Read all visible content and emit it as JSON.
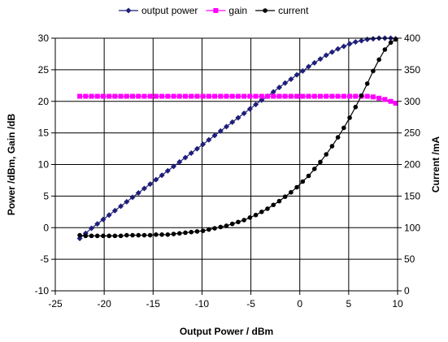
{
  "chart_data": {
    "type": "line",
    "title": "",
    "xlabel": "Output Power / dBm",
    "ylabel": "Power /dBm, Gain /dB",
    "y2label": "Current /mA",
    "xlim": [
      -25,
      10
    ],
    "ylim": [
      -10,
      30
    ],
    "y2lim": [
      0,
      400
    ],
    "xticks": [
      -25,
      -20,
      -15,
      -10,
      -5,
      0,
      5,
      10
    ],
    "yticks": [
      -10,
      -5,
      0,
      5,
      10,
      15,
      20,
      25,
      30
    ],
    "y2ticks": [
      0,
      50,
      100,
      150,
      200,
      250,
      300,
      350,
      400
    ],
    "grid": true,
    "legend_position": "top",
    "x": [
      -22.5,
      -21.9,
      -21.3,
      -20.7,
      -20.1,
      -19.5,
      -18.9,
      -18.3,
      -17.7,
      -17.1,
      -16.5,
      -15.9,
      -15.3,
      -14.7,
      -14.1,
      -13.5,
      -12.9,
      -12.3,
      -11.7,
      -11.1,
      -10.5,
      -9.9,
      -9.3,
      -8.7,
      -8.1,
      -7.5,
      -6.9,
      -6.3,
      -5.7,
      -5.1,
      -4.5,
      -3.9,
      -3.3,
      -2.7,
      -2.1,
      -1.5,
      -0.9,
      -0.3,
      0.3,
      0.9,
      1.5,
      2.1,
      2.7,
      3.3,
      3.9,
      4.5,
      5.1,
      5.7,
      6.3,
      6.9,
      7.5,
      8.1,
      8.7,
      9.3,
      9.8
    ],
    "series": [
      {
        "name": "output power",
        "axis": "left",
        "color": "#1f1f7a",
        "marker": "diamond",
        "values": [
          -1.7,
          -0.9,
          -0.1,
          0.6,
          1.3,
          2.0,
          2.7,
          3.4,
          4.1,
          4.8,
          5.5,
          6.2,
          6.9,
          7.6,
          8.3,
          9.0,
          9.7,
          10.4,
          11.1,
          11.8,
          12.5,
          13.2,
          13.9,
          14.6,
          15.3,
          16.0,
          16.7,
          17.4,
          18.1,
          18.8,
          19.5,
          20.2,
          20.8,
          21.5,
          22.2,
          22.9,
          23.5,
          24.2,
          24.8,
          25.5,
          26.1,
          26.7,
          27.3,
          27.8,
          28.3,
          28.7,
          29.1,
          29.4,
          29.6,
          29.8,
          29.9,
          30.0,
          30.0,
          30.0,
          29.9
        ]
      },
      {
        "name": "gain",
        "axis": "left",
        "color": "#ff00ff",
        "marker": "square",
        "values": [
          20.8,
          20.8,
          20.8,
          20.8,
          20.8,
          20.8,
          20.8,
          20.8,
          20.8,
          20.8,
          20.8,
          20.8,
          20.8,
          20.8,
          20.8,
          20.8,
          20.8,
          20.8,
          20.8,
          20.8,
          20.8,
          20.8,
          20.8,
          20.8,
          20.8,
          20.8,
          20.8,
          20.8,
          20.8,
          20.8,
          20.8,
          20.8,
          20.8,
          20.8,
          20.8,
          20.8,
          20.8,
          20.8,
          20.8,
          20.8,
          20.8,
          20.8,
          20.8,
          20.8,
          20.8,
          20.8,
          20.8,
          20.8,
          20.8,
          20.8,
          20.7,
          20.5,
          20.3,
          20.0,
          19.7
        ]
      },
      {
        "name": "current",
        "axis": "right",
        "color": "#000000",
        "marker": "circle",
        "values": [
          88,
          87,
          87,
          87,
          87,
          87,
          87,
          87,
          88,
          88,
          88,
          88,
          88,
          89,
          89,
          89,
          90,
          91,
          92,
          93,
          94,
          95,
          97,
          99,
          101,
          103,
          106,
          109,
          112,
          116,
          120,
          125,
          130,
          136,
          142,
          149,
          156,
          164,
          173,
          182,
          193,
          204,
          216,
          229,
          243,
          258,
          274,
          291,
          309,
          328,
          348,
          366,
          382,
          393,
          398
        ]
      }
    ]
  }
}
